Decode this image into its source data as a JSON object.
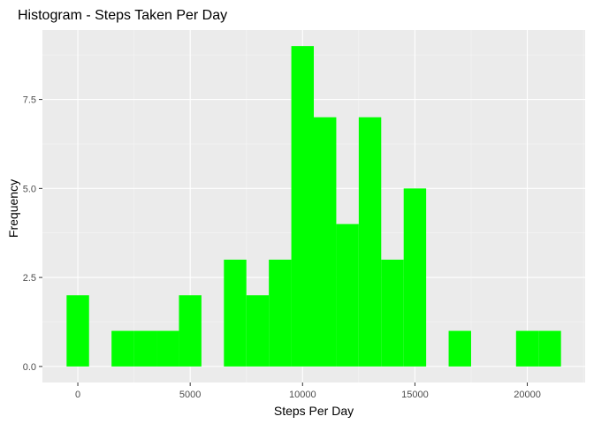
{
  "chart_data": {
    "type": "bar",
    "title": "Histogram - Steps Taken Per Day",
    "xlabel": "Steps Per Day",
    "ylabel": "Frequency",
    "bin_width": 1000,
    "bins": [
      {
        "center": 0,
        "count": 2
      },
      {
        "center": 1000,
        "count": 0
      },
      {
        "center": 2000,
        "count": 1
      },
      {
        "center": 3000,
        "count": 1
      },
      {
        "center": 4000,
        "count": 1
      },
      {
        "center": 5000,
        "count": 2
      },
      {
        "center": 6000,
        "count": 0
      },
      {
        "center": 7000,
        "count": 3
      },
      {
        "center": 8000,
        "count": 2
      },
      {
        "center": 9000,
        "count": 3
      },
      {
        "center": 10000,
        "count": 9
      },
      {
        "center": 11000,
        "count": 7
      },
      {
        "center": 12000,
        "count": 4
      },
      {
        "center": 13000,
        "count": 7
      },
      {
        "center": 14000,
        "count": 3
      },
      {
        "center": 15000,
        "count": 5
      },
      {
        "center": 16000,
        "count": 0
      },
      {
        "center": 17000,
        "count": 1
      },
      {
        "center": 18000,
        "count": 0
      },
      {
        "center": 19000,
        "count": 0
      },
      {
        "center": 20000,
        "count": 1
      },
      {
        "center": 21000,
        "count": 1
      }
    ],
    "xlim": [
      -1575,
      22575
    ],
    "ylim": [
      -0.45,
      9.45
    ],
    "x_ticks": [
      0,
      5000,
      10000,
      15000,
      20000
    ],
    "x_tick_labels": [
      "0",
      "5000",
      "10000",
      "15000",
      "20000"
    ],
    "y_ticks": [
      0,
      2.5,
      5,
      7.5
    ],
    "y_tick_labels": [
      "0.0",
      "2.5",
      "5.0",
      "7.5"
    ],
    "grid": true,
    "colors": {
      "bar": "#00ff00",
      "panel": "#ebebeb",
      "grid_major": "#ffffff",
      "grid_minor": "#f5f5f5"
    }
  }
}
